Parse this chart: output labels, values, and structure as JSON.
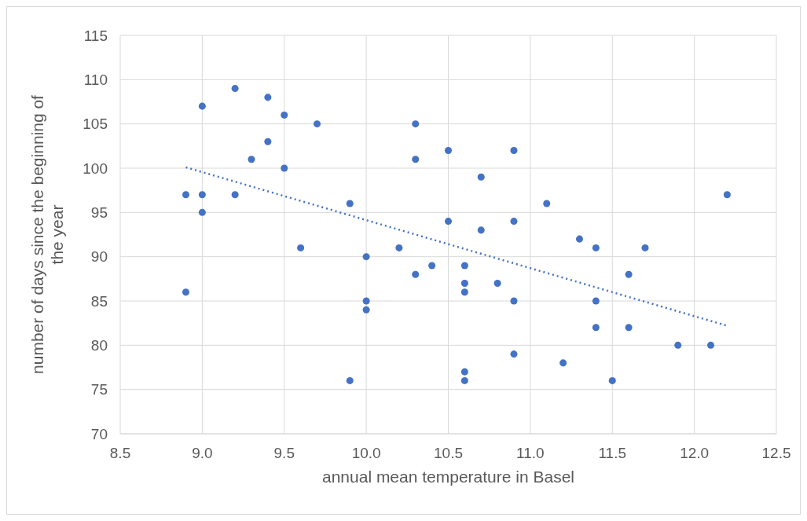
{
  "chart_data": {
    "type": "scatter",
    "xlabel": "annual mean temperature in Basel",
    "ylabel": "number of days since the beginning of the year",
    "xlim": [
      8.5,
      12.5
    ],
    "xticks": [
      {
        "value": 8.5,
        "label": "8.5"
      },
      {
        "value": 9,
        "label": "9.0"
      },
      {
        "value": 9.5,
        "label": "9.5"
      },
      {
        "value": 10,
        "label": "10.0"
      },
      {
        "value": 10.5,
        "label": "10.5"
      },
      {
        "value": 11,
        "label": "11.0"
      },
      {
        "value": 11.5,
        "label": "11.5"
      },
      {
        "value": 12,
        "label": "12.0"
      },
      {
        "value": 12.5,
        "label": "12.5"
      }
    ],
    "ylim": [
      70,
      115
    ],
    "yticks": [
      70,
      75,
      80,
      85,
      90,
      95,
      100,
      105,
      110,
      115
    ],
    "grid": true,
    "marker": "circle",
    "series": [
      {
        "color": "#4472c4",
        "x": [
          8.9,
          8.9,
          9.0,
          9.0,
          9.0,
          9.2,
          9.2,
          9.3,
          9.4,
          9.4,
          9.5,
          9.5,
          9.6,
          9.7,
          9.9,
          9.9,
          10.0,
          10.0,
          10.0,
          10.2,
          10.3,
          10.3,
          10.3,
          10.4,
          10.5,
          10.5,
          10.6,
          10.6,
          10.6,
          10.6,
          10.6,
          10.7,
          10.7,
          10.8,
          10.9,
          10.9,
          10.9,
          10.9,
          11.1,
          11.2,
          11.3,
          11.4,
          11.4,
          11.4,
          11.5,
          11.6,
          11.6,
          11.7,
          11.9,
          12.1,
          12.2
        ],
        "values": [
          97,
          86,
          107,
          97,
          95,
          109,
          97,
          101,
          108,
          103,
          106,
          100,
          91,
          105,
          96,
          76,
          90,
          85,
          84,
          91,
          105,
          101,
          88,
          89,
          102,
          94,
          89,
          87,
          86,
          77,
          76,
          99,
          93,
          87,
          102,
          94,
          85,
          79,
          96,
          78,
          92,
          91,
          85,
          82,
          76,
          88,
          82,
          91,
          80,
          80,
          97
        ]
      },
      {
        "type": "line",
        "color": "#4472c4",
        "line_style": "dotted",
        "marker": "none",
        "x": [
          8.9,
          12.2
        ],
        "values": [
          100.1,
          82.2
        ]
      }
    ]
  }
}
